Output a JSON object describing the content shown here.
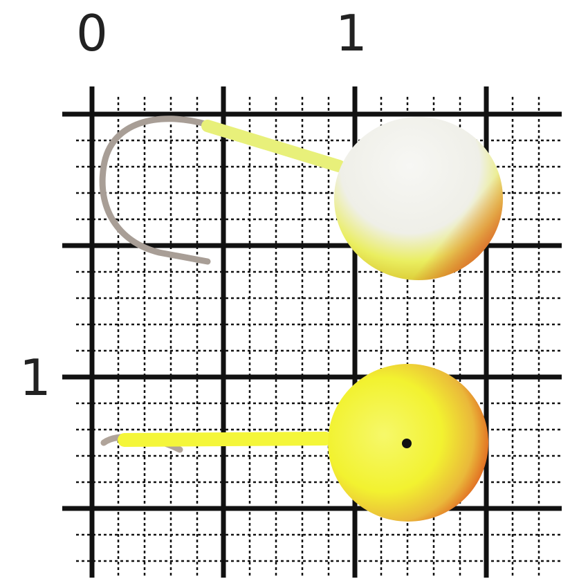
{
  "scale_labels": {
    "top_zero": "0",
    "top_one": "1",
    "left_one": "1"
  },
  "colors": {
    "grid": "#111111",
    "ball_white": "#f4f4f0",
    "ball_yellow": "#f2f23a",
    "ball_red": "#d9401c",
    "hook_silver": "#b8aca0"
  },
  "objects": [
    "jig-white-top",
    "jig-yellow-bottom"
  ]
}
